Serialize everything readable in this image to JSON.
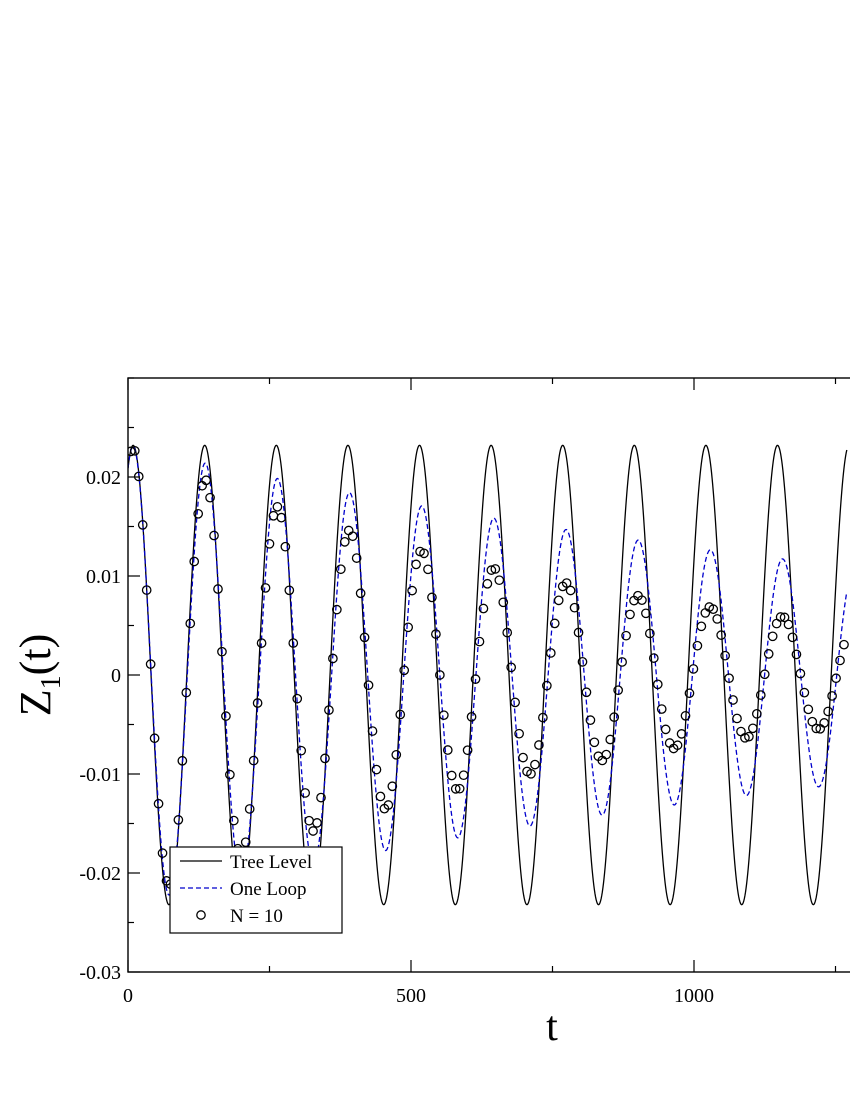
{
  "chart_data": {
    "type": "line",
    "title": "",
    "xlabel": "t",
    "ylabel_main": "Z",
    "ylabel_sub": "1",
    "ylabel_tail": "(t)",
    "xlim": [
      0,
      1270
    ],
    "ylim": [
      -0.03,
      0.03
    ],
    "x_ticks": [
      {
        "value": 0,
        "label": "0"
      },
      {
        "value": 500,
        "label": "500"
      },
      {
        "value": 1000,
        "label": "1000"
      }
    ],
    "y_ticks": [
      {
        "value": -0.03,
        "label": "-0.03"
      },
      {
        "value": -0.02,
        "label": "-0.02"
      },
      {
        "value": -0.01,
        "label": "-0.01"
      },
      {
        "value": 0,
        "label": "0"
      },
      {
        "value": 0.01,
        "label": "0.01"
      },
      {
        "value": 0.02,
        "label": "0.02"
      }
    ],
    "x_minor_step": 250,
    "y_minor_step": 0.005,
    "grid": false,
    "legend_position": "bottom-left",
    "series": [
      {
        "name": "Tree Level",
        "style": "solid",
        "color": "#000000",
        "amplitude": 0.0232,
        "period": 126.5,
        "phase": -0.45,
        "decay": 0,
        "t_start": 0,
        "t_end": 1270
      },
      {
        "name": "One Loop",
        "style": "dashed",
        "color": "#0000cc",
        "amplitude": 0.0232,
        "period": 127.5,
        "phase": -0.45,
        "decay": 0.00059,
        "t_start": 0,
        "t_end": 1270
      },
      {
        "name": "N = 10",
        "style": "markers",
        "color": "#000000",
        "amplitude": 0.0232,
        "period": 127.5,
        "phase": -0.45,
        "decay": 0.00118,
        "t_start": 5,
        "t_end": 1270,
        "t_step": 7
      }
    ]
  }
}
